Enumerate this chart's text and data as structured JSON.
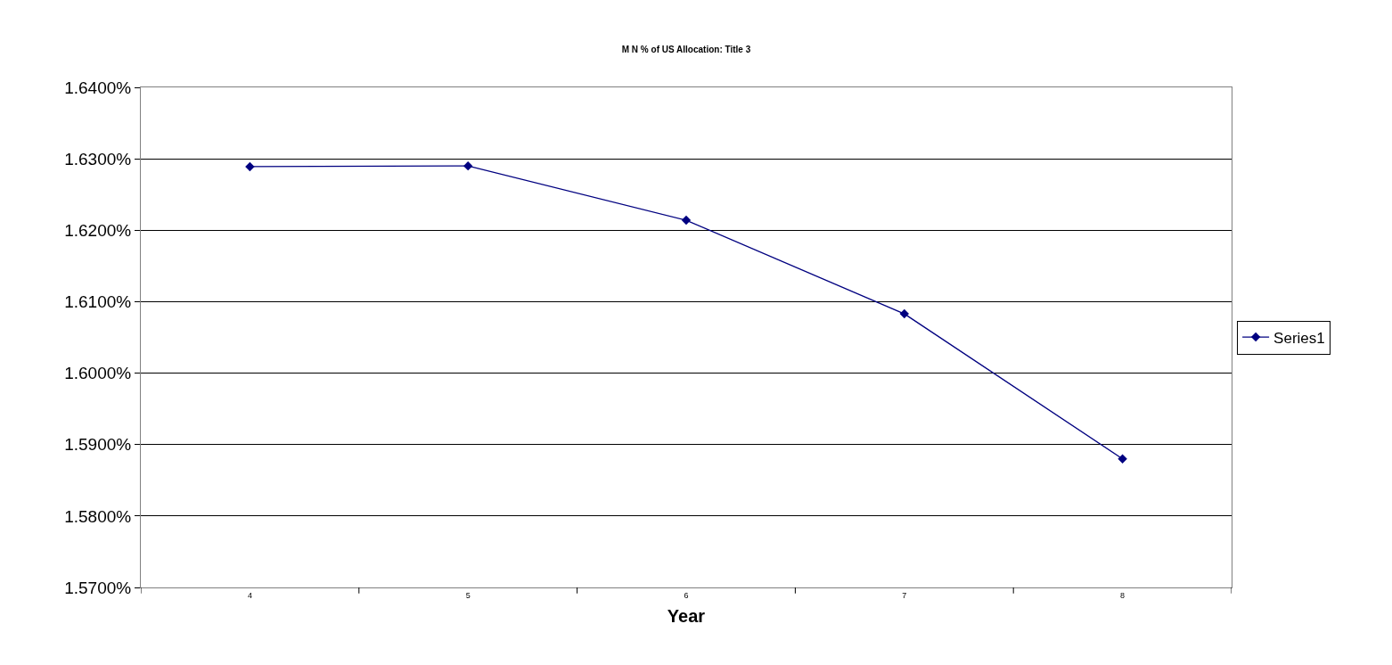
{
  "chart_data": {
    "type": "line",
    "title": "M N % of US Allocation: Title 3",
    "xlabel": "Year",
    "categories": [
      "4",
      "5",
      "6",
      "7",
      "8"
    ],
    "series": [
      {
        "name": "Series1",
        "color": "#000080",
        "values": [
          1.6289,
          1.629,
          1.6214,
          1.6083,
          1.588
        ]
      }
    ],
    "ylim": [
      1.57,
      1.64
    ],
    "yticks": [
      {
        "value": 1.57,
        "label": "1.5700%"
      },
      {
        "value": 1.58,
        "label": "1.5800%"
      },
      {
        "value": 1.59,
        "label": "1.5900%"
      },
      {
        "value": 1.6,
        "label": "1.6000%"
      },
      {
        "value": 1.61,
        "label": "1.6100%"
      },
      {
        "value": 1.62,
        "label": "1.6200%"
      },
      {
        "value": 1.63,
        "label": "1.6300%"
      },
      {
        "value": 1.64,
        "label": "1.6400%"
      }
    ],
    "grid": "y",
    "legend": "right",
    "marker": "diamond",
    "line_style": "solid"
  }
}
